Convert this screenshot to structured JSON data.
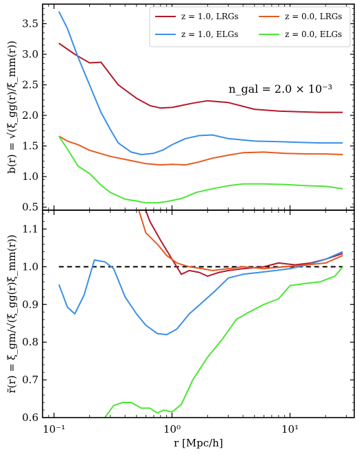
{
  "chart_data": [
    {
      "panel": "top",
      "type": "line",
      "xscale": "log",
      "xlim": [
        0.08,
        35
      ],
      "ylim": [
        0.45,
        3.82
      ],
      "ylabel": "b(r) = √(ξ_gg(r)/ξ_mm(r))",
      "yticks": [
        "0.5",
        "1.0",
        "1.5",
        "2.0",
        "2.5",
        "3.0",
        "3.5"
      ],
      "annotation": "n_gal = 2.0 × 10⁻³",
      "legend_position": "top-right",
      "series": [
        {
          "name": "z = 1.0, LRGs",
          "color": "#b2182b",
          "x": [
            0.11,
            0.15,
            0.2,
            0.25,
            0.35,
            0.5,
            0.65,
            0.8,
            1.0,
            1.5,
            2.0,
            3.0,
            5.0,
            8.0,
            12.0,
            18.0,
            28.0
          ],
          "y": [
            3.18,
            3.0,
            2.86,
            2.87,
            2.5,
            2.28,
            2.16,
            2.12,
            2.13,
            2.2,
            2.24,
            2.21,
            2.1,
            2.07,
            2.06,
            2.05,
            2.05
          ]
        },
        {
          "name": "z = 1.0, ELGs",
          "color": "#3a8ee8",
          "x": [
            0.11,
            0.13,
            0.16,
            0.2,
            0.25,
            0.3,
            0.35,
            0.45,
            0.55,
            0.7,
            0.85,
            1.0,
            1.3,
            1.7,
            2.2,
            3.0,
            5.0,
            8.0,
            12.0,
            18.0,
            28.0
          ],
          "y": [
            3.7,
            3.42,
            2.95,
            2.5,
            2.05,
            1.77,
            1.55,
            1.4,
            1.36,
            1.38,
            1.44,
            1.52,
            1.62,
            1.67,
            1.68,
            1.62,
            1.58,
            1.57,
            1.56,
            1.55,
            1.55
          ]
        },
        {
          "name": "z = 0.0, LRGs",
          "color": "#e8591e",
          "x": [
            0.11,
            0.13,
            0.16,
            0.2,
            0.3,
            0.45,
            0.6,
            0.8,
            1.0,
            1.3,
            1.7,
            2.2,
            3.0,
            4.0,
            6.0,
            9.0,
            14.0,
            20.0,
            28.0
          ],
          "y": [
            1.66,
            1.58,
            1.52,
            1.43,
            1.33,
            1.26,
            1.21,
            1.19,
            1.2,
            1.19,
            1.24,
            1.3,
            1.35,
            1.39,
            1.4,
            1.38,
            1.37,
            1.37,
            1.36
          ]
        },
        {
          "name": "z = 0.0, ELGs",
          "color": "#4be635",
          "x": [
            0.11,
            0.13,
            0.16,
            0.2,
            0.25,
            0.3,
            0.4,
            0.5,
            0.6,
            0.75,
            0.9,
            1.2,
            1.6,
            2.2,
            3.0,
            4.0,
            6.0,
            9.0,
            14.0,
            20.0,
            28.0
          ],
          "y": [
            1.66,
            1.45,
            1.17,
            1.05,
            0.86,
            0.74,
            0.63,
            0.6,
            0.57,
            0.57,
            0.59,
            0.64,
            0.74,
            0.8,
            0.85,
            0.88,
            0.88,
            0.87,
            0.85,
            0.84,
            0.8
          ]
        }
      ]
    },
    {
      "panel": "bottom",
      "type": "line",
      "xscale": "log",
      "xlim": [
        0.08,
        35
      ],
      "ylim": [
        0.6,
        1.15
      ],
      "xlabel": "r [Mpc/h]",
      "ylabel": "r̃(r) = ξ_gm/√(ξ_gg(r)ξ_mm(r))",
      "xticks": [
        {
          "value": 0.1,
          "label": "10⁻¹"
        },
        {
          "value": 1,
          "label": "10⁰"
        },
        {
          "value": 10,
          "label": "10¹"
        }
      ],
      "yticks": [
        "0.6",
        "0.7",
        "0.8",
        "0.9",
        "1.0",
        "1.1"
      ],
      "reference_line": 1.0,
      "series": [
        {
          "name": "z = 1.0, LRGs",
          "color": "#b2182b",
          "x": [
            0.55,
            0.65,
            0.8,
            1.0,
            1.2,
            1.4,
            1.7,
            2.0,
            2.5,
            3.0,
            4.0,
            6.0,
            8.0,
            11.0,
            15.0,
            20.0,
            28.0
          ],
          "y": [
            1.18,
            1.12,
            1.07,
            1.02,
            0.98,
            0.99,
            0.985,
            0.975,
            0.985,
            0.99,
            0.995,
            1.0,
            1.01,
            1.005,
            1.01,
            1.02,
            1.035
          ]
        },
        {
          "name": "z = 1.0, ELGs",
          "color": "#3a8ee8",
          "x": [
            0.11,
            0.13,
            0.15,
            0.18,
            0.22,
            0.27,
            0.32,
            0.4,
            0.5,
            0.6,
            0.75,
            0.9,
            1.1,
            1.4,
            1.8,
            2.3,
            3.0,
            4.0,
            5.5,
            7.5,
            10.0,
            14.0,
            20.0,
            28.0
          ],
          "y": [
            0.953,
            0.893,
            0.875,
            0.925,
            1.018,
            1.013,
            0.995,
            0.92,
            0.875,
            0.845,
            0.823,
            0.82,
            0.835,
            0.875,
            0.905,
            0.935,
            0.97,
            0.98,
            0.985,
            0.99,
            0.995,
            1.005,
            1.02,
            1.04
          ]
        },
        {
          "name": "z = 0.0, LRGs",
          "color": "#e8591e",
          "x": [
            0.5,
            0.6,
            0.75,
            0.9,
            1.1,
            1.4,
            1.8,
            2.2,
            3.0,
            4.0,
            6.0,
            9.0,
            14.0,
            20.0,
            28.0
          ],
          "y": [
            1.17,
            1.09,
            1.06,
            1.03,
            1.01,
            1.0,
            0.995,
            0.99,
            0.995,
            1.0,
            0.995,
            1.0,
            1.005,
            1.01,
            1.03
          ]
        },
        {
          "name": "z = 0.0, ELGs",
          "color": "#4be635",
          "x": [
            0.27,
            0.32,
            0.38,
            0.45,
            0.55,
            0.65,
            0.75,
            0.85,
            1.0,
            1.2,
            1.5,
            2.0,
            2.7,
            3.5,
            4.5,
            6.0,
            8.0,
            10.0,
            13.0,
            18.0,
            24.0,
            28.0
          ],
          "y": [
            0.6,
            0.632,
            0.64,
            0.64,
            0.625,
            0.625,
            0.612,
            0.62,
            0.615,
            0.635,
            0.7,
            0.76,
            0.81,
            0.86,
            0.88,
            0.9,
            0.915,
            0.95,
            0.955,
            0.96,
            0.975,
            1.0
          ]
        }
      ]
    }
  ]
}
